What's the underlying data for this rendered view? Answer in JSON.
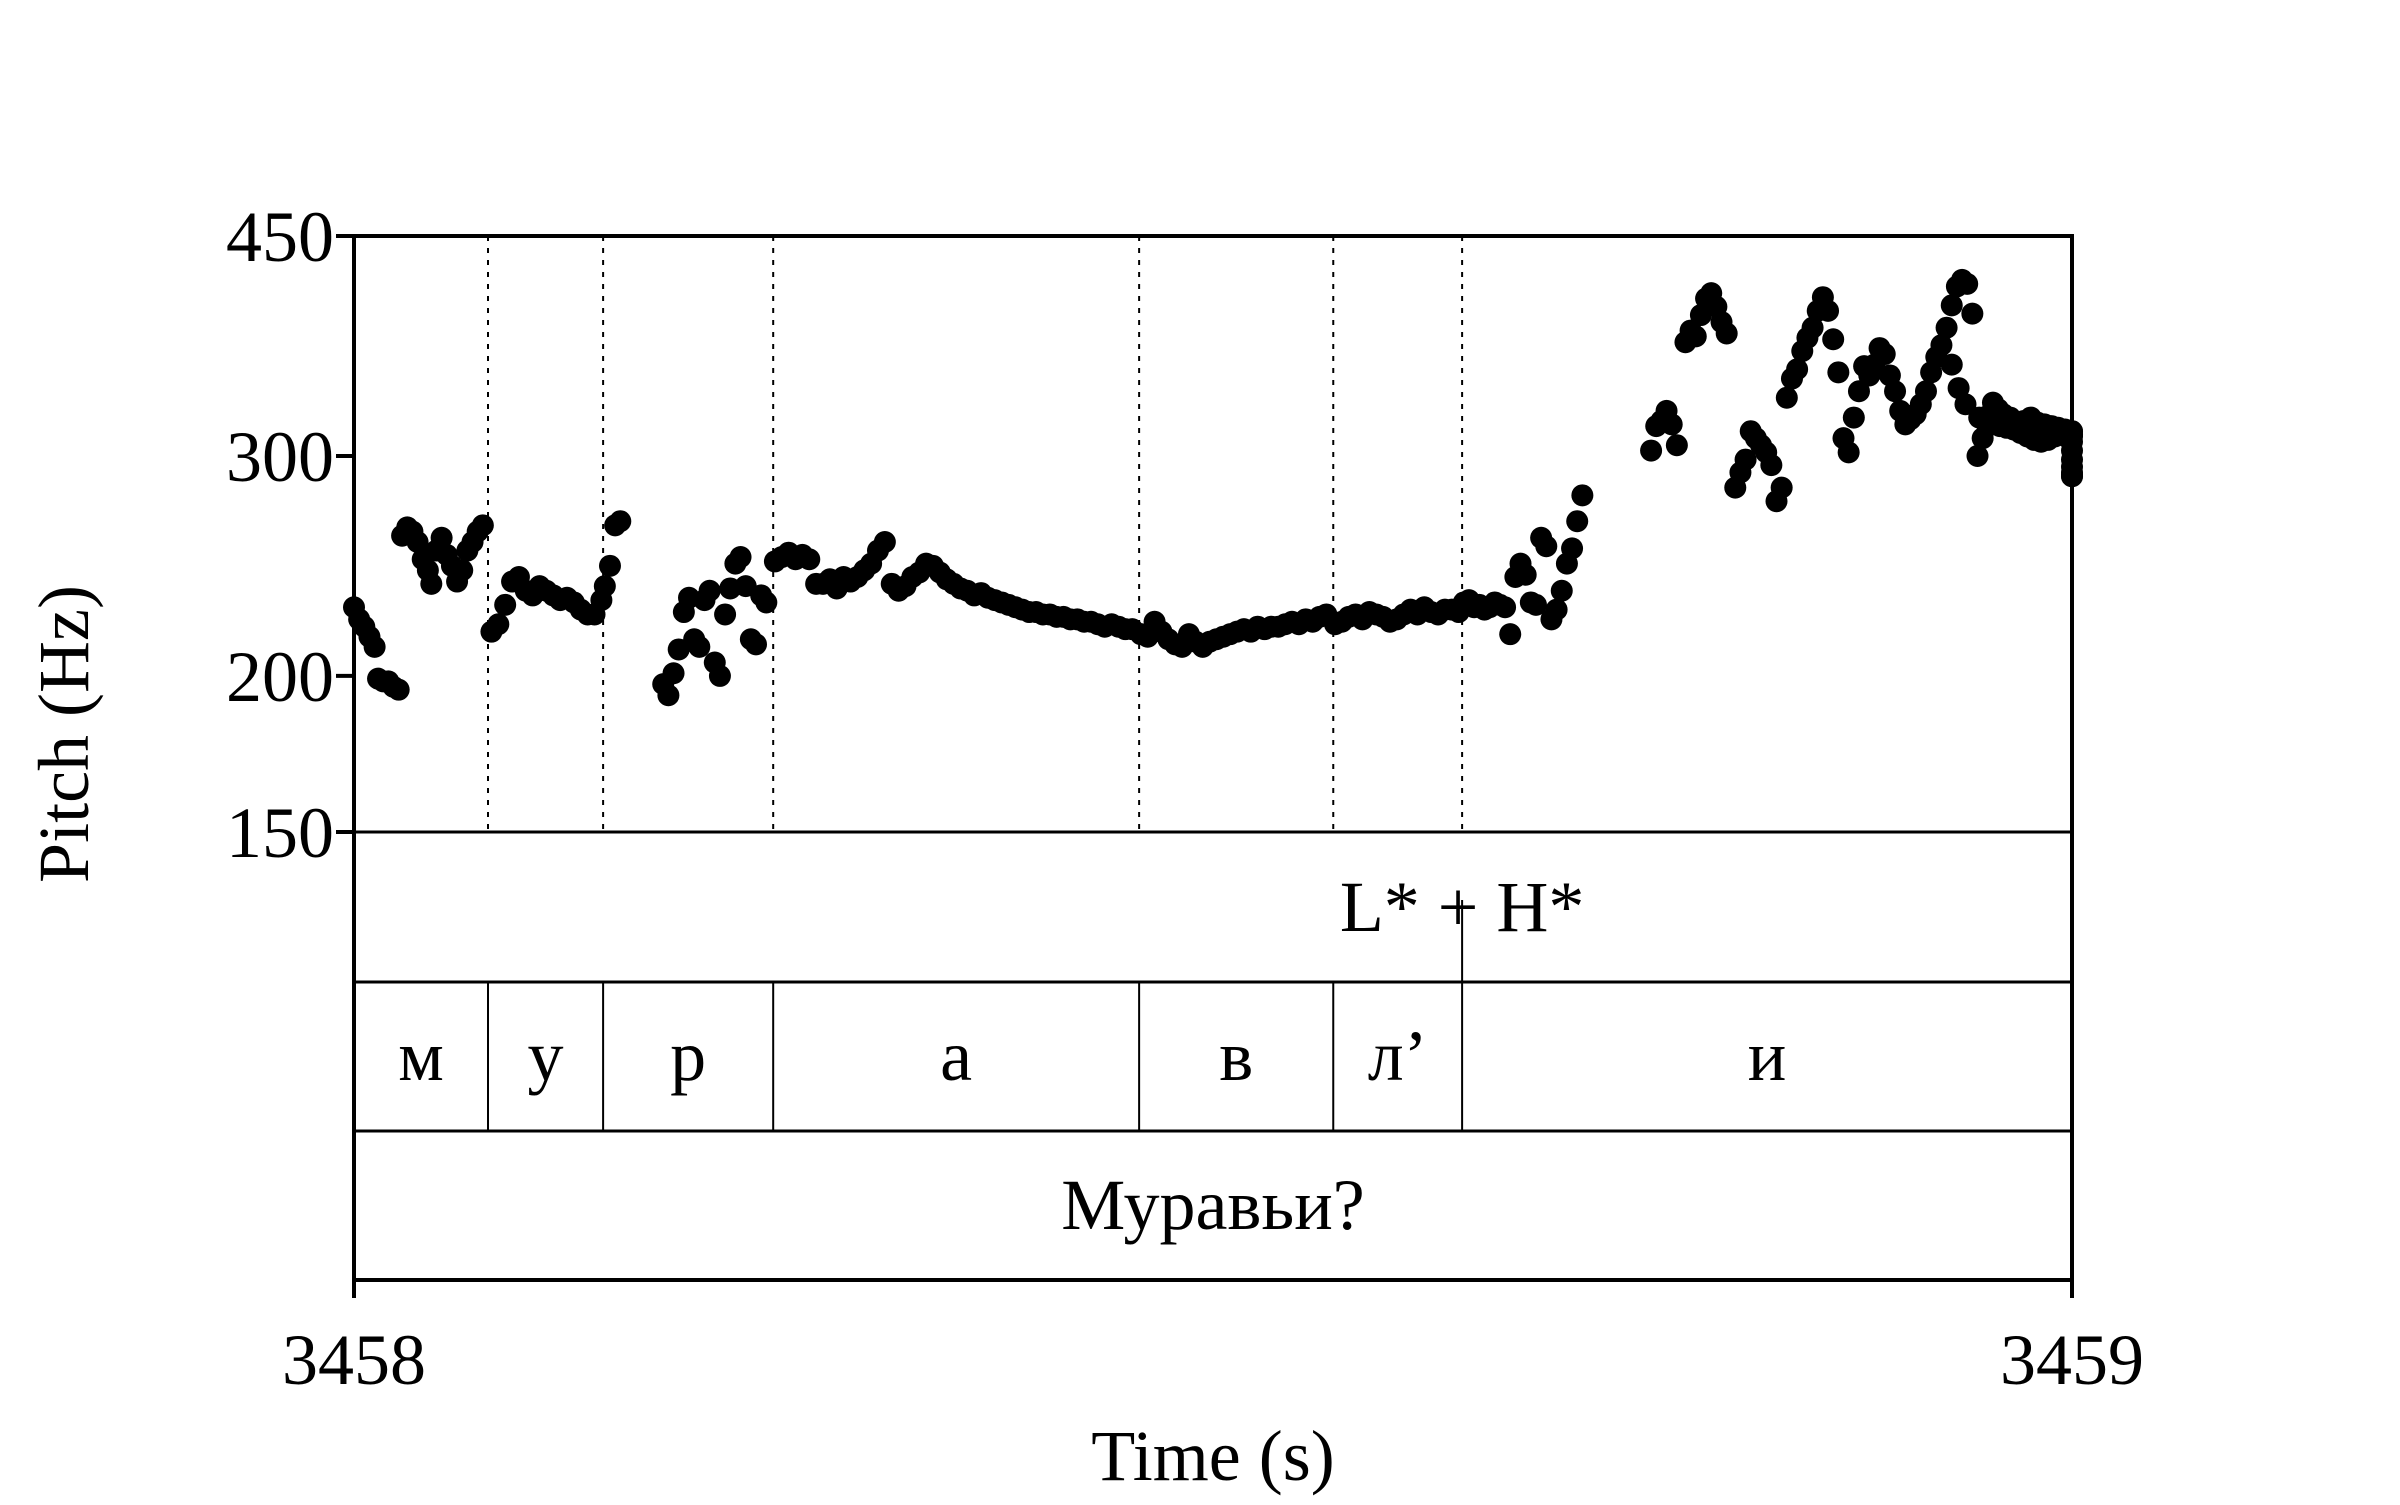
{
  "chart_data": {
    "type": "scatter",
    "xlabel": "Time (s)",
    "ylabel": "Pitch (Hz)",
    "xlim": [
      3458,
      3459
    ],
    "ylim": [
      150,
      450
    ],
    "y_scale": "log",
    "x_ticks": [
      "3458",
      "3459"
    ],
    "y_ticks": [
      450,
      300,
      200,
      150
    ],
    "grid": false,
    "marker_color": "#000000",
    "segment_boundaries": [
      3458.078,
      3458.145,
      3458.244,
      3458.457,
      3458.57,
      3458.645
    ],
    "tiers": {
      "tone": [
        {
          "label": "L* + H*",
          "time": 3458.645
        }
      ],
      "segments": [
        {
          "label": "м",
          "start": 3458.0,
          "end": 3458.078
        },
        {
          "label": "у",
          "start": 3458.078,
          "end": 3458.145
        },
        {
          "label": "р",
          "start": 3458.145,
          "end": 3458.244
        },
        {
          "label": "а",
          "start": 3458.244,
          "end": 3458.457
        },
        {
          "label": "в",
          "start": 3458.457,
          "end": 3458.57
        },
        {
          "label": "л’",
          "start": 3458.57,
          "end": 3458.645
        },
        {
          "label": "и",
          "start": 3458.645,
          "end": 3459.0
        }
      ],
      "word": "Муравьи?"
    },
    "points": [
      [
        3458.0,
        227
      ],
      [
        3458.003,
        222
      ],
      [
        3458.006,
        219
      ],
      [
        3458.009,
        215
      ],
      [
        3458.012,
        211
      ],
      [
        3458.014,
        199
      ],
      [
        3458.017,
        198
      ],
      [
        3458.02,
        198
      ],
      [
        3458.023,
        196
      ],
      [
        3458.026,
        195
      ],
      [
        3458.028,
        259
      ],
      [
        3458.031,
        263
      ],
      [
        3458.034,
        261
      ],
      [
        3458.037,
        256
      ],
      [
        3458.04,
        248
      ],
      [
        3458.043,
        243
      ],
      [
        3458.045,
        237
      ],
      [
        3458.048,
        252
      ],
      [
        3458.051,
        258
      ],
      [
        3458.054,
        250
      ],
      [
        3458.057,
        245
      ],
      [
        3458.06,
        238
      ],
      [
        3458.063,
        243
      ],
      [
        3458.066,
        252
      ],
      [
        3458.069,
        256
      ],
      [
        3458.072,
        261
      ],
      [
        3458.075,
        264
      ],
      [
        3458.08,
        217
      ],
      [
        3458.084,
        220
      ],
      [
        3458.088,
        228
      ],
      [
        3458.092,
        238
      ],
      [
        3458.096,
        240
      ],
      [
        3458.1,
        234
      ],
      [
        3458.104,
        232
      ],
      [
        3458.108,
        236
      ],
      [
        3458.112,
        234
      ],
      [
        3458.116,
        232
      ],
      [
        3458.12,
        230
      ],
      [
        3458.124,
        231
      ],
      [
        3458.128,
        229
      ],
      [
        3458.132,
        226
      ],
      [
        3458.136,
        224
      ],
      [
        3458.14,
        224
      ],
      [
        3458.144,
        230
      ],
      [
        3458.146,
        236
      ],
      [
        3458.149,
        245
      ],
      [
        3458.152,
        264
      ],
      [
        3458.155,
        266
      ],
      [
        3458.18,
        197
      ],
      [
        3458.183,
        193
      ],
      [
        3458.186,
        201
      ],
      [
        3458.189,
        210
      ],
      [
        3458.192,
        225
      ],
      [
        3458.195,
        231
      ],
      [
        3458.198,
        214
      ],
      [
        3458.201,
        211
      ],
      [
        3458.204,
        230
      ],
      [
        3458.207,
        234
      ],
      [
        3458.21,
        205
      ],
      [
        3458.213,
        200
      ],
      [
        3458.216,
        224
      ],
      [
        3458.219,
        235
      ],
      [
        3458.222,
        246
      ],
      [
        3458.225,
        249
      ],
      [
        3458.228,
        236
      ],
      [
        3458.231,
        214
      ],
      [
        3458.234,
        212
      ],
      [
        3458.237,
        232
      ],
      [
        3458.24,
        229
      ],
      [
        3458.245,
        247
      ],
      [
        3458.249,
        249
      ],
      [
        3458.253,
        251
      ],
      [
        3458.257,
        248
      ],
      [
        3458.261,
        250
      ],
      [
        3458.265,
        248
      ],
      [
        3458.269,
        237
      ],
      [
        3458.273,
        237
      ],
      [
        3458.277,
        239
      ],
      [
        3458.281,
        235
      ],
      [
        3458.285,
        240
      ],
      [
        3458.289,
        238
      ],
      [
        3458.293,
        240
      ],
      [
        3458.297,
        243
      ],
      [
        3458.301,
        246
      ],
      [
        3458.305,
        252
      ],
      [
        3458.309,
        256
      ],
      [
        3458.313,
        237
      ],
      [
        3458.317,
        234
      ],
      [
        3458.321,
        236
      ],
      [
        3458.325,
        240
      ],
      [
        3458.329,
        242
      ],
      [
        3458.333,
        246
      ],
      [
        3458.337,
        245
      ],
      [
        3458.341,
        242
      ],
      [
        3458.345,
        239
      ],
      [
        3458.349,
        237
      ],
      [
        3458.353,
        235
      ],
      [
        3458.357,
        234
      ],
      [
        3458.361,
        232
      ],
      [
        3458.365,
        233
      ],
      [
        3458.369,
        231
      ],
      [
        3458.373,
        230
      ],
      [
        3458.377,
        229
      ],
      [
        3458.381,
        228
      ],
      [
        3458.385,
        227
      ],
      [
        3458.389,
        226
      ],
      [
        3458.393,
        225
      ],
      [
        3458.397,
        225
      ],
      [
        3458.401,
        224
      ],
      [
        3458.405,
        224
      ],
      [
        3458.409,
        223
      ],
      [
        3458.413,
        223
      ],
      [
        3458.417,
        222
      ],
      [
        3458.421,
        222
      ],
      [
        3458.425,
        221
      ],
      [
        3458.429,
        221
      ],
      [
        3458.433,
        220
      ],
      [
        3458.437,
        219
      ],
      [
        3458.441,
        220
      ],
      [
        3458.445,
        219
      ],
      [
        3458.449,
        218
      ],
      [
        3458.453,
        218
      ],
      [
        3458.458,
        216
      ],
      [
        3458.462,
        215
      ],
      [
        3458.466,
        221
      ],
      [
        3458.47,
        217
      ],
      [
        3458.474,
        214
      ],
      [
        3458.478,
        212
      ],
      [
        3458.482,
        211
      ],
      [
        3458.486,
        216
      ],
      [
        3458.49,
        213
      ],
      [
        3458.494,
        211
      ],
      [
        3458.498,
        213
      ],
      [
        3458.502,
        214
      ],
      [
        3458.506,
        215
      ],
      [
        3458.51,
        216
      ],
      [
        3458.514,
        217
      ],
      [
        3458.518,
        218
      ],
      [
        3458.522,
        217
      ],
      [
        3458.526,
        219
      ],
      [
        3458.53,
        218
      ],
      [
        3458.534,
        219
      ],
      [
        3458.538,
        219
      ],
      [
        3458.542,
        220
      ],
      [
        3458.546,
        221
      ],
      [
        3458.55,
        220
      ],
      [
        3458.554,
        222
      ],
      [
        3458.558,
        221
      ],
      [
        3458.562,
        223
      ],
      [
        3458.566,
        224
      ],
      [
        3458.571,
        220
      ],
      [
        3458.575,
        221
      ],
      [
        3458.579,
        223
      ],
      [
        3458.583,
        224
      ],
      [
        3458.587,
        222
      ],
      [
        3458.591,
        225
      ],
      [
        3458.595,
        224
      ],
      [
        3458.599,
        223
      ],
      [
        3458.603,
        221
      ],
      [
        3458.607,
        222
      ],
      [
        3458.611,
        224
      ],
      [
        3458.615,
        226
      ],
      [
        3458.619,
        224
      ],
      [
        3458.623,
        227
      ],
      [
        3458.627,
        225
      ],
      [
        3458.631,
        224
      ],
      [
        3458.635,
        226
      ],
      [
        3458.639,
        226
      ],
      [
        3458.643,
        225
      ],
      [
        3458.646,
        229
      ],
      [
        3458.649,
        230
      ],
      [
        3458.652,
        227
      ],
      [
        3458.655,
        228
      ],
      [
        3458.658,
        226
      ],
      [
        3458.661,
        227
      ],
      [
        3458.664,
        229
      ],
      [
        3458.667,
        228
      ],
      [
        3458.67,
        227
      ],
      [
        3458.673,
        216
      ],
      [
        3458.676,
        240
      ],
      [
        3458.679,
        246
      ],
      [
        3458.682,
        241
      ],
      [
        3458.685,
        229
      ],
      [
        3458.688,
        228
      ],
      [
        3458.691,
        258
      ],
      [
        3458.694,
        254
      ],
      [
        3458.697,
        222
      ],
      [
        3458.7,
        226
      ],
      [
        3458.703,
        234
      ],
      [
        3458.706,
        246
      ],
      [
        3458.709,
        253
      ],
      [
        3458.712,
        266
      ],
      [
        3458.715,
        279
      ],
      [
        3458.755,
        303
      ],
      [
        3458.758,
        317
      ],
      [
        3458.761,
        320
      ],
      [
        3458.764,
        326
      ],
      [
        3458.767,
        318
      ],
      [
        3458.77,
        306
      ],
      [
        3458.775,
        370
      ],
      [
        3458.778,
        378
      ],
      [
        3458.781,
        374
      ],
      [
        3458.784,
        389
      ],
      [
        3458.787,
        401
      ],
      [
        3458.79,
        405
      ],
      [
        3458.793,
        395
      ],
      [
        3458.796,
        384
      ],
      [
        3458.799,
        376
      ],
      [
        3458.804,
        283
      ],
      [
        3458.807,
        291
      ],
      [
        3458.81,
        298
      ],
      [
        3458.813,
        314
      ],
      [
        3458.816,
        310
      ],
      [
        3458.819,
        306
      ],
      [
        3458.822,
        302
      ],
      [
        3458.825,
        295
      ],
      [
        3458.828,
        276
      ],
      [
        3458.831,
        283
      ],
      [
        3458.834,
        334
      ],
      [
        3458.837,
        346
      ],
      [
        3458.84,
        352
      ],
      [
        3458.843,
        364
      ],
      [
        3458.846,
        373
      ],
      [
        3458.849,
        380
      ],
      [
        3458.852,
        392
      ],
      [
        3458.855,
        402
      ],
      [
        3458.858,
        392
      ],
      [
        3458.861,
        372
      ],
      [
        3458.864,
        350
      ],
      [
        3458.867,
        310
      ],
      [
        3458.87,
        302
      ],
      [
        3458.873,
        322
      ],
      [
        3458.876,
        338
      ],
      [
        3458.879,
        354
      ],
      [
        3458.882,
        348
      ],
      [
        3458.885,
        355
      ],
      [
        3458.888,
        366
      ],
      [
        3458.891,
        362
      ],
      [
        3458.894,
        348
      ],
      [
        3458.897,
        338
      ],
      [
        3458.9,
        326
      ],
      [
        3458.903,
        318
      ],
      [
        3458.906,
        321
      ],
      [
        3458.909,
        324
      ],
      [
        3458.912,
        330
      ],
      [
        3458.915,
        338
      ],
      [
        3458.918,
        350
      ],
      [
        3458.921,
        360
      ],
      [
        3458.924,
        368
      ],
      [
        3458.927,
        380
      ],
      [
        3458.93,
        396
      ],
      [
        3458.933,
        410
      ],
      [
        3458.936,
        415
      ],
      [
        3458.939,
        412
      ],
      [
        3458.942,
        390
      ],
      [
        3458.945,
        300
      ],
      [
        3458.948,
        310
      ],
      [
        3458.951,
        323
      ],
      [
        3458.954,
        331
      ],
      [
        3458.957,
        327
      ],
      [
        3458.96,
        324
      ],
      [
        3458.964,
        322
      ],
      [
        3458.968,
        318
      ],
      [
        3458.972,
        317
      ],
      [
        3458.976,
        316
      ],
      [
        3458.98,
        315
      ],
      [
        3458.984,
        314
      ],
      [
        3458.988,
        313
      ],
      [
        3458.992,
        313
      ],
      [
        3458.996,
        312
      ],
      [
        3459.0,
        311
      ],
      [
        3458.972,
        320
      ],
      [
        3458.976,
        322
      ],
      [
        3458.98,
        319
      ],
      [
        3458.984,
        318
      ],
      [
        3458.988,
        317
      ],
      [
        3458.992,
        316
      ],
      [
        3458.996,
        315
      ],
      [
        3458.93,
        355
      ],
      [
        3458.934,
        340
      ],
      [
        3458.938,
        330
      ],
      [
        3458.946,
        322
      ],
      [
        3458.95,
        319
      ],
      [
        3458.954,
        318
      ],
      [
        3458.958,
        317
      ],
      [
        3458.962,
        316
      ],
      [
        3458.966,
        315
      ],
      [
        3458.97,
        313
      ],
      [
        3458.974,
        311
      ],
      [
        3458.978,
        309
      ],
      [
        3458.982,
        308
      ],
      [
        3458.986,
        309
      ],
      [
        3458.99,
        311
      ],
      [
        3458.994,
        312
      ],
      [
        3458.998,
        310
      ],
      [
        3459.002,
        312
      ],
      [
        3459.006,
        314
      ],
      [
        3459.01,
        314
      ],
      [
        3459.014,
        312
      ],
      [
        3459.018,
        308
      ],
      [
        3459.022,
        303
      ],
      [
        3459.026,
        298
      ],
      [
        3459.03,
        294
      ],
      [
        3459.034,
        291
      ],
      [
        3459.038,
        290
      ],
      [
        3459.042,
        289
      ],
      [
        3459.046,
        289
      ]
    ]
  }
}
